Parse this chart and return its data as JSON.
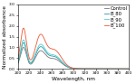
{
  "xlabel": "Wavelength, nm",
  "ylabel": "Normalized absorbance",
  "xlim": [
    200,
    400
  ],
  "ylim": [
    0.0,
    3.0
  ],
  "yticks": [
    0.0,
    0.5,
    1.0,
    1.5,
    2.0,
    2.5,
    3.0
  ],
  "ytick_labels": [
    "0.0",
    "0.5",
    "1.0",
    "1.5",
    "2.0",
    "2.5",
    "3.0"
  ],
  "xticks": [
    200,
    220,
    240,
    260,
    280,
    300,
    320,
    340,
    360,
    380,
    400
  ],
  "series": [
    {
      "label": "Control",
      "color": "#777777",
      "scale": 1.0,
      "lw": 0.6
    },
    {
      "label": "B_80",
      "color": "#2299aa",
      "scale": 1.22,
      "lw": 0.6
    },
    {
      "label": "B_90",
      "color": "#55cccc",
      "scale": 1.35,
      "lw": 0.6
    },
    {
      "label": "B_100",
      "color": "#ee5533",
      "scale": 1.9,
      "lw": 0.6
    }
  ],
  "legend_fontsize": 3.8,
  "axis_fontsize": 4.2,
  "tick_fontsize": 3.2,
  "background_color": "#ffffff"
}
